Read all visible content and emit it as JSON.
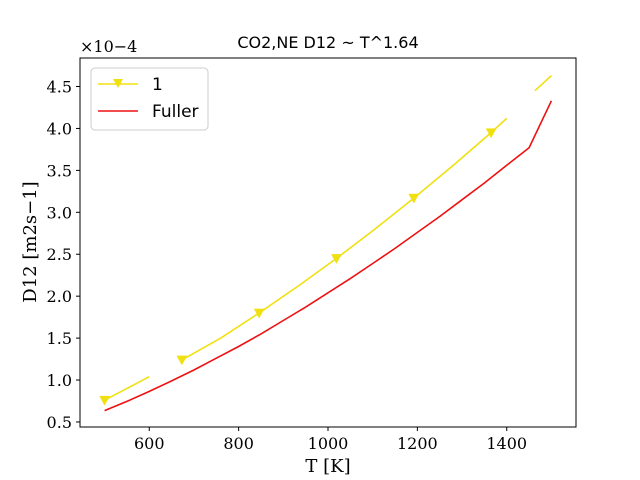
{
  "chart_data": {
    "type": "line",
    "title": "CO2,NE D12 ~ T^1.64",
    "xlabel": "T [K]",
    "ylabel": "D12 [m2s−1]",
    "y_scale_label": "×10−4",
    "xlim": [
      445,
      1555
    ],
    "ylim": [
      0.44,
      4.84
    ],
    "xticks": [
      600,
      800,
      1000,
      1200,
      1400
    ],
    "yticks": [
      0.5,
      1.0,
      1.5,
      2.0,
      2.5,
      3.0,
      3.5,
      4.0,
      4.5
    ],
    "xtick_labels": [
      "600",
      "800",
      "1000",
      "1200",
      "1400"
    ],
    "ytick_labels": [
      "0.5",
      "1.0",
      "1.5",
      "2.0",
      "2.5",
      "3.0",
      "3.5",
      "4.0",
      "4.5"
    ],
    "legend_position": "top-left",
    "series": [
      {
        "name": "1",
        "color": "#f0e010",
        "marker": "triangle-down",
        "segments": [
          [
            [
              500,
              0.76
            ],
            [
              600,
              1.04
            ]
          ],
          [
            [
              673,
              1.24
            ],
            [
              760,
              1.5
            ],
            [
              846,
              1.8
            ],
            [
              933,
              2.12
            ],
            [
              1019,
              2.45
            ],
            [
              1105,
              2.8
            ],
            [
              1192,
              3.17
            ],
            [
              1278,
              3.55
            ],
            [
              1365,
              3.95
            ],
            [
              1400,
              4.12
            ]
          ],
          [
            [
              1463,
              4.45
            ],
            [
              1500,
              4.63
            ]
          ]
        ],
        "markers": [
          [
            500,
            0.76
          ],
          [
            673,
            1.24
          ],
          [
            846,
            1.8
          ],
          [
            1019,
            2.45
          ],
          [
            1192,
            3.17
          ],
          [
            1365,
            3.95
          ]
        ]
      },
      {
        "name": "Fuller",
        "color": "#ee1111",
        "marker": "none",
        "segments": [
          [
            [
              500,
              0.635
            ],
            [
              550,
              0.745
            ],
            [
              600,
              0.865
            ],
            [
              650,
              0.99
            ],
            [
              700,
              1.12
            ],
            [
              750,
              1.26
            ],
            [
              800,
              1.4
            ],
            [
              850,
              1.55
            ],
            [
              900,
              1.71
            ],
            [
              950,
              1.87
            ],
            [
              1000,
              2.04
            ],
            [
              1050,
              2.21
            ],
            [
              1100,
              2.39
            ],
            [
              1150,
              2.57
            ],
            [
              1200,
              2.76
            ],
            [
              1250,
              2.95
            ],
            [
              1300,
              3.15
            ],
            [
              1350,
              3.35
            ],
            [
              1400,
              3.56
            ],
            [
              1450,
              3.77
            ],
            [
              1500,
              4.33
            ]
          ]
        ]
      }
    ]
  }
}
